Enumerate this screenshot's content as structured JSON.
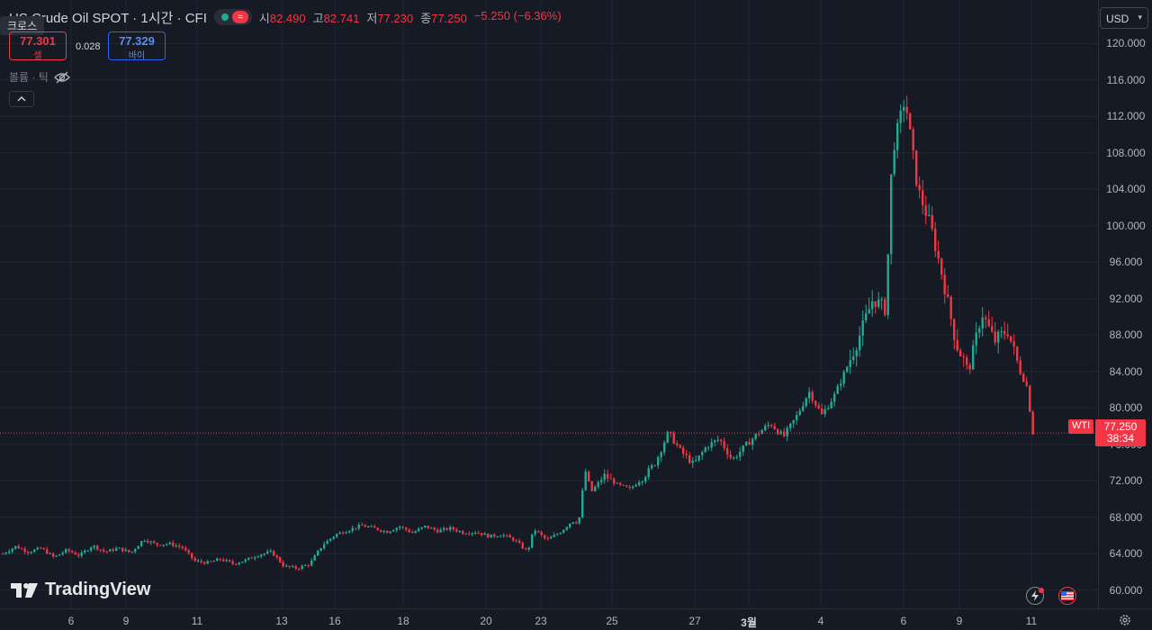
{
  "header": {
    "title": "US Crude Oil SPOT · 1시간 · CFI",
    "ohlc": {
      "open_label": "시",
      "open": "82.490",
      "high_label": "고",
      "high": "82.741",
      "low_label": "저",
      "low": "77.230",
      "close_label": "종",
      "close": "77.250",
      "change": "−5.250 (−6.36%)"
    }
  },
  "cross_tag": "크로스",
  "trade": {
    "sell_price": "77.301",
    "sell_label": "셀",
    "spread": "0.028",
    "buy_price": "77.329",
    "buy_label": "바이"
  },
  "volume_label": "볼륨 · 틱",
  "currency": "USD",
  "last_price": {
    "symbol": "WTI",
    "price": "77.250",
    "countdown": "38:34"
  },
  "branding": {
    "logo_text": "TradingView"
  },
  "colors": {
    "up": "#22ab94",
    "down": "#f23645",
    "background": "#161a25",
    "grid": "#232733"
  },
  "chart_data": {
    "type": "candlestick",
    "title": "US Crude Oil SPOT · 1시간 · CFI",
    "ylim": [
      58,
      122
    ],
    "y_ticks": [
      "60.000",
      "64.000",
      "68.000",
      "72.000",
      "76.000",
      "80.000",
      "84.000",
      "88.000",
      "92.000",
      "96.000",
      "100.000",
      "104.000",
      "108.000",
      "112.000",
      "116.000",
      "120.000"
    ],
    "x_ticks": [
      "6",
      "9",
      "11",
      "13",
      "16",
      "18",
      "20",
      "23",
      "25",
      "27",
      "3월",
      "4",
      "6",
      "9",
      "11"
    ],
    "grid": true,
    "approx_path": {
      "description": "approximate close-price path over the visible period",
      "points": [
        [
          0,
          64.0
        ],
        [
          2,
          64.8
        ],
        [
          4,
          64.2
        ],
        [
          6,
          64.6
        ],
        [
          8,
          63.6
        ],
        [
          10,
          64.4
        ],
        [
          12,
          63.8
        ],
        [
          14,
          64.9
        ],
        [
          16,
          64.2
        ],
        [
          18,
          64.6
        ],
        [
          20,
          64.1
        ],
        [
          22,
          65.6
        ],
        [
          24,
          65.0
        ],
        [
          26,
          65.1
        ],
        [
          28,
          64.7
        ],
        [
          30,
          63.2
        ],
        [
          32,
          63.0
        ],
        [
          34,
          63.4
        ],
        [
          36,
          62.9
        ],
        [
          38,
          63.3
        ],
        [
          40,
          63.9
        ],
        [
          42,
          64.2
        ],
        [
          44,
          62.6
        ],
        [
          46,
          62.4
        ],
        [
          48,
          62.9
        ],
        [
          50,
          65.0
        ],
        [
          52,
          66.1
        ],
        [
          54,
          66.6
        ],
        [
          56,
          67.1
        ],
        [
          58,
          66.8
        ],
        [
          60,
          66.4
        ],
        [
          62,
          67.0
        ],
        [
          64,
          66.3
        ],
        [
          66,
          67.0
        ],
        [
          68,
          66.5
        ],
        [
          70,
          66.8
        ],
        [
          72,
          66.3
        ],
        [
          74,
          66.4
        ],
        [
          76,
          65.9
        ],
        [
          78,
          66.1
        ],
        [
          80,
          65.5
        ],
        [
          82,
          64.2
        ],
        [
          83,
          66.7
        ],
        [
          85,
          65.5
        ],
        [
          87,
          66.3
        ],
        [
          89,
          67.6
        ],
        [
          90,
          67.4
        ],
        [
          91,
          73.2
        ],
        [
          92,
          70.8
        ],
        [
          94,
          72.6
        ],
        [
          96,
          71.6
        ],
        [
          98,
          71.1
        ],
        [
          100,
          72.3
        ],
        [
          102,
          74.0
        ],
        [
          104,
          77.3
        ],
        [
          106,
          75.2
        ],
        [
          108,
          73.8
        ],
        [
          110,
          75.8
        ],
        [
          112,
          76.6
        ],
        [
          114,
          74.3
        ],
        [
          116,
          75.8
        ],
        [
          118,
          77.2
        ],
        [
          120,
          78.3
        ],
        [
          122,
          76.8
        ],
        [
          124,
          79.0
        ],
        [
          126,
          81.8
        ],
        [
          128,
          79.2
        ],
        [
          130,
          81.4
        ],
        [
          132,
          84.6
        ],
        [
          134,
          88.1
        ],
        [
          136,
          92.0
        ],
        [
          138,
          90.8
        ],
        [
          139,
          108.0
        ],
        [
          141,
          114.0
        ],
        [
          143,
          104.0
        ],
        [
          145,
          100.0
        ],
        [
          147,
          94.0
        ],
        [
          149,
          87.0
        ],
        [
          151,
          84.0
        ],
        [
          153,
          90.5
        ],
        [
          155,
          87.3
        ],
        [
          157,
          88.6
        ],
        [
          159,
          84.0
        ],
        [
          160,
          82.5
        ],
        [
          161,
          77.3
        ]
      ]
    }
  }
}
